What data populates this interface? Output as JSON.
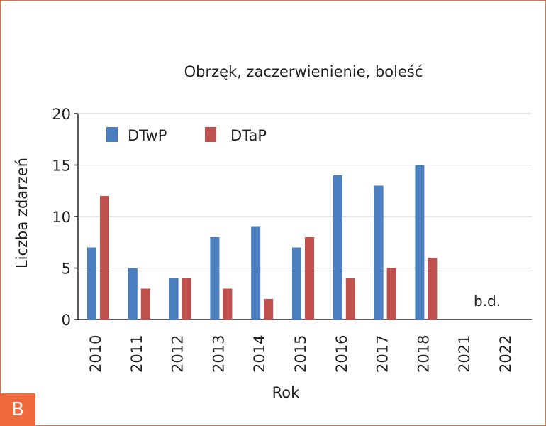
{
  "panel": {
    "label": "B",
    "border_color": "#ef6a3e",
    "badge_color": "#ef6a3e"
  },
  "chart_data": {
    "type": "bar",
    "title": "Obrzęk, zaczerwienienie, boleść",
    "xlabel": "Rok",
    "ylabel": "Liczba zdarzeń",
    "categories": [
      "2010",
      "2011",
      "2012",
      "2013",
      "2014",
      "2015",
      "2016",
      "2017",
      "2018",
      "2021",
      "2022"
    ],
    "series": [
      {
        "name": "DTwP",
        "color": "#4a7ebf",
        "values": [
          7,
          5,
          4,
          8,
          9,
          7,
          14,
          13,
          15,
          null,
          null
        ]
      },
      {
        "name": "DTaP",
        "color": "#c0504d",
        "values": [
          12,
          3,
          4,
          3,
          2,
          8,
          4,
          5,
          6,
          null,
          null
        ]
      }
    ],
    "ylim": [
      0,
      20
    ],
    "yticks": [
      0,
      5,
      10,
      15,
      20
    ],
    "grid": true,
    "legend_position": "top-left",
    "annotation": "b.d."
  }
}
